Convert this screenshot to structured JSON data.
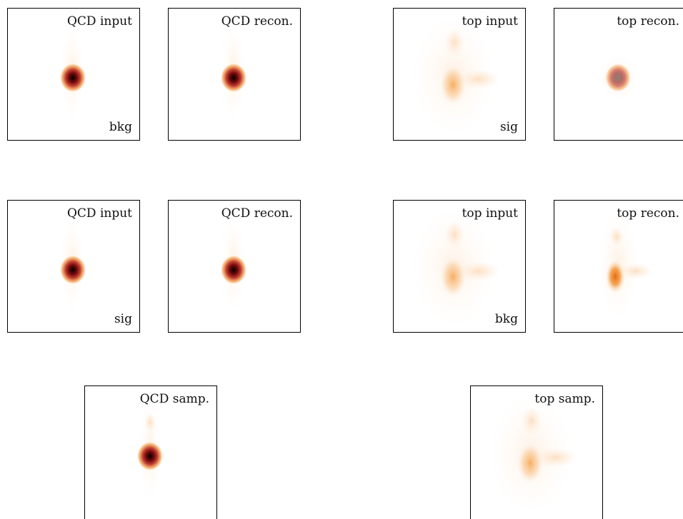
{
  "panels": [
    {
      "title": "QCD input",
      "tag": "bkg",
      "style": "qcd"
    },
    {
      "title": "QCD recon.",
      "tag": "",
      "style": "qcd_rec"
    },
    {
      "title": "top input",
      "tag": "sig",
      "style": "top"
    },
    {
      "title": "top recon.",
      "tag": "",
      "style": "top_rec_sharp"
    },
    {
      "title": "QCD input",
      "tag": "sig",
      "style": "qcd"
    },
    {
      "title": "QCD recon.",
      "tag": "",
      "style": "qcd_rec"
    },
    {
      "title": "top input",
      "tag": "bkg",
      "style": "top"
    },
    {
      "title": "top recon.",
      "tag": "",
      "style": "top_rec"
    },
    {
      "title": "QCD samp.",
      "tag": "",
      "style": "qcd_samp"
    },
    {
      "title": "top samp.",
      "tag": "",
      "style": "top_samp"
    }
  ],
  "colors": {
    "hot_core": "#000000",
    "hot_mid": "#c0392b",
    "hot_outer": "#f28c28",
    "faint": "#fde6cf"
  }
}
